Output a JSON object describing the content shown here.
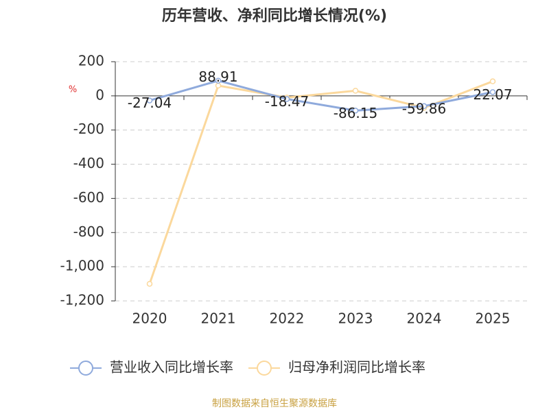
{
  "chart_data": {
    "type": "line",
    "title": "历年营收、净利同比增长情况(%)",
    "y_label": "%",
    "categories": [
      "2020",
      "2021",
      "2022",
      "2023",
      "2024",
      "2025"
    ],
    "series": [
      {
        "name": "营业收入同比增长率",
        "color": "#8faadc",
        "values": [
          -27.04,
          88.91,
          -18.47,
          -86.15,
          -59.86,
          22.07
        ],
        "show_labels": true
      },
      {
        "name": "归母净利润同比增长率",
        "color": "#fbd89c",
        "values": [
          -1100,
          60,
          -10,
          30,
          -70,
          85
        ],
        "show_labels": false
      }
    ],
    "ylim": [
      -1200,
      200
    ],
    "yticks": [
      200,
      0,
      -200,
      -400,
      -600,
      -800,
      {
        "value": -1000,
        "label": "-1,000"
      },
      {
        "value": -1200,
        "label": "-1,200"
      }
    ],
    "grid": true,
    "legend": "bottom",
    "source": "制图数据来自恒生聚源数据库"
  }
}
